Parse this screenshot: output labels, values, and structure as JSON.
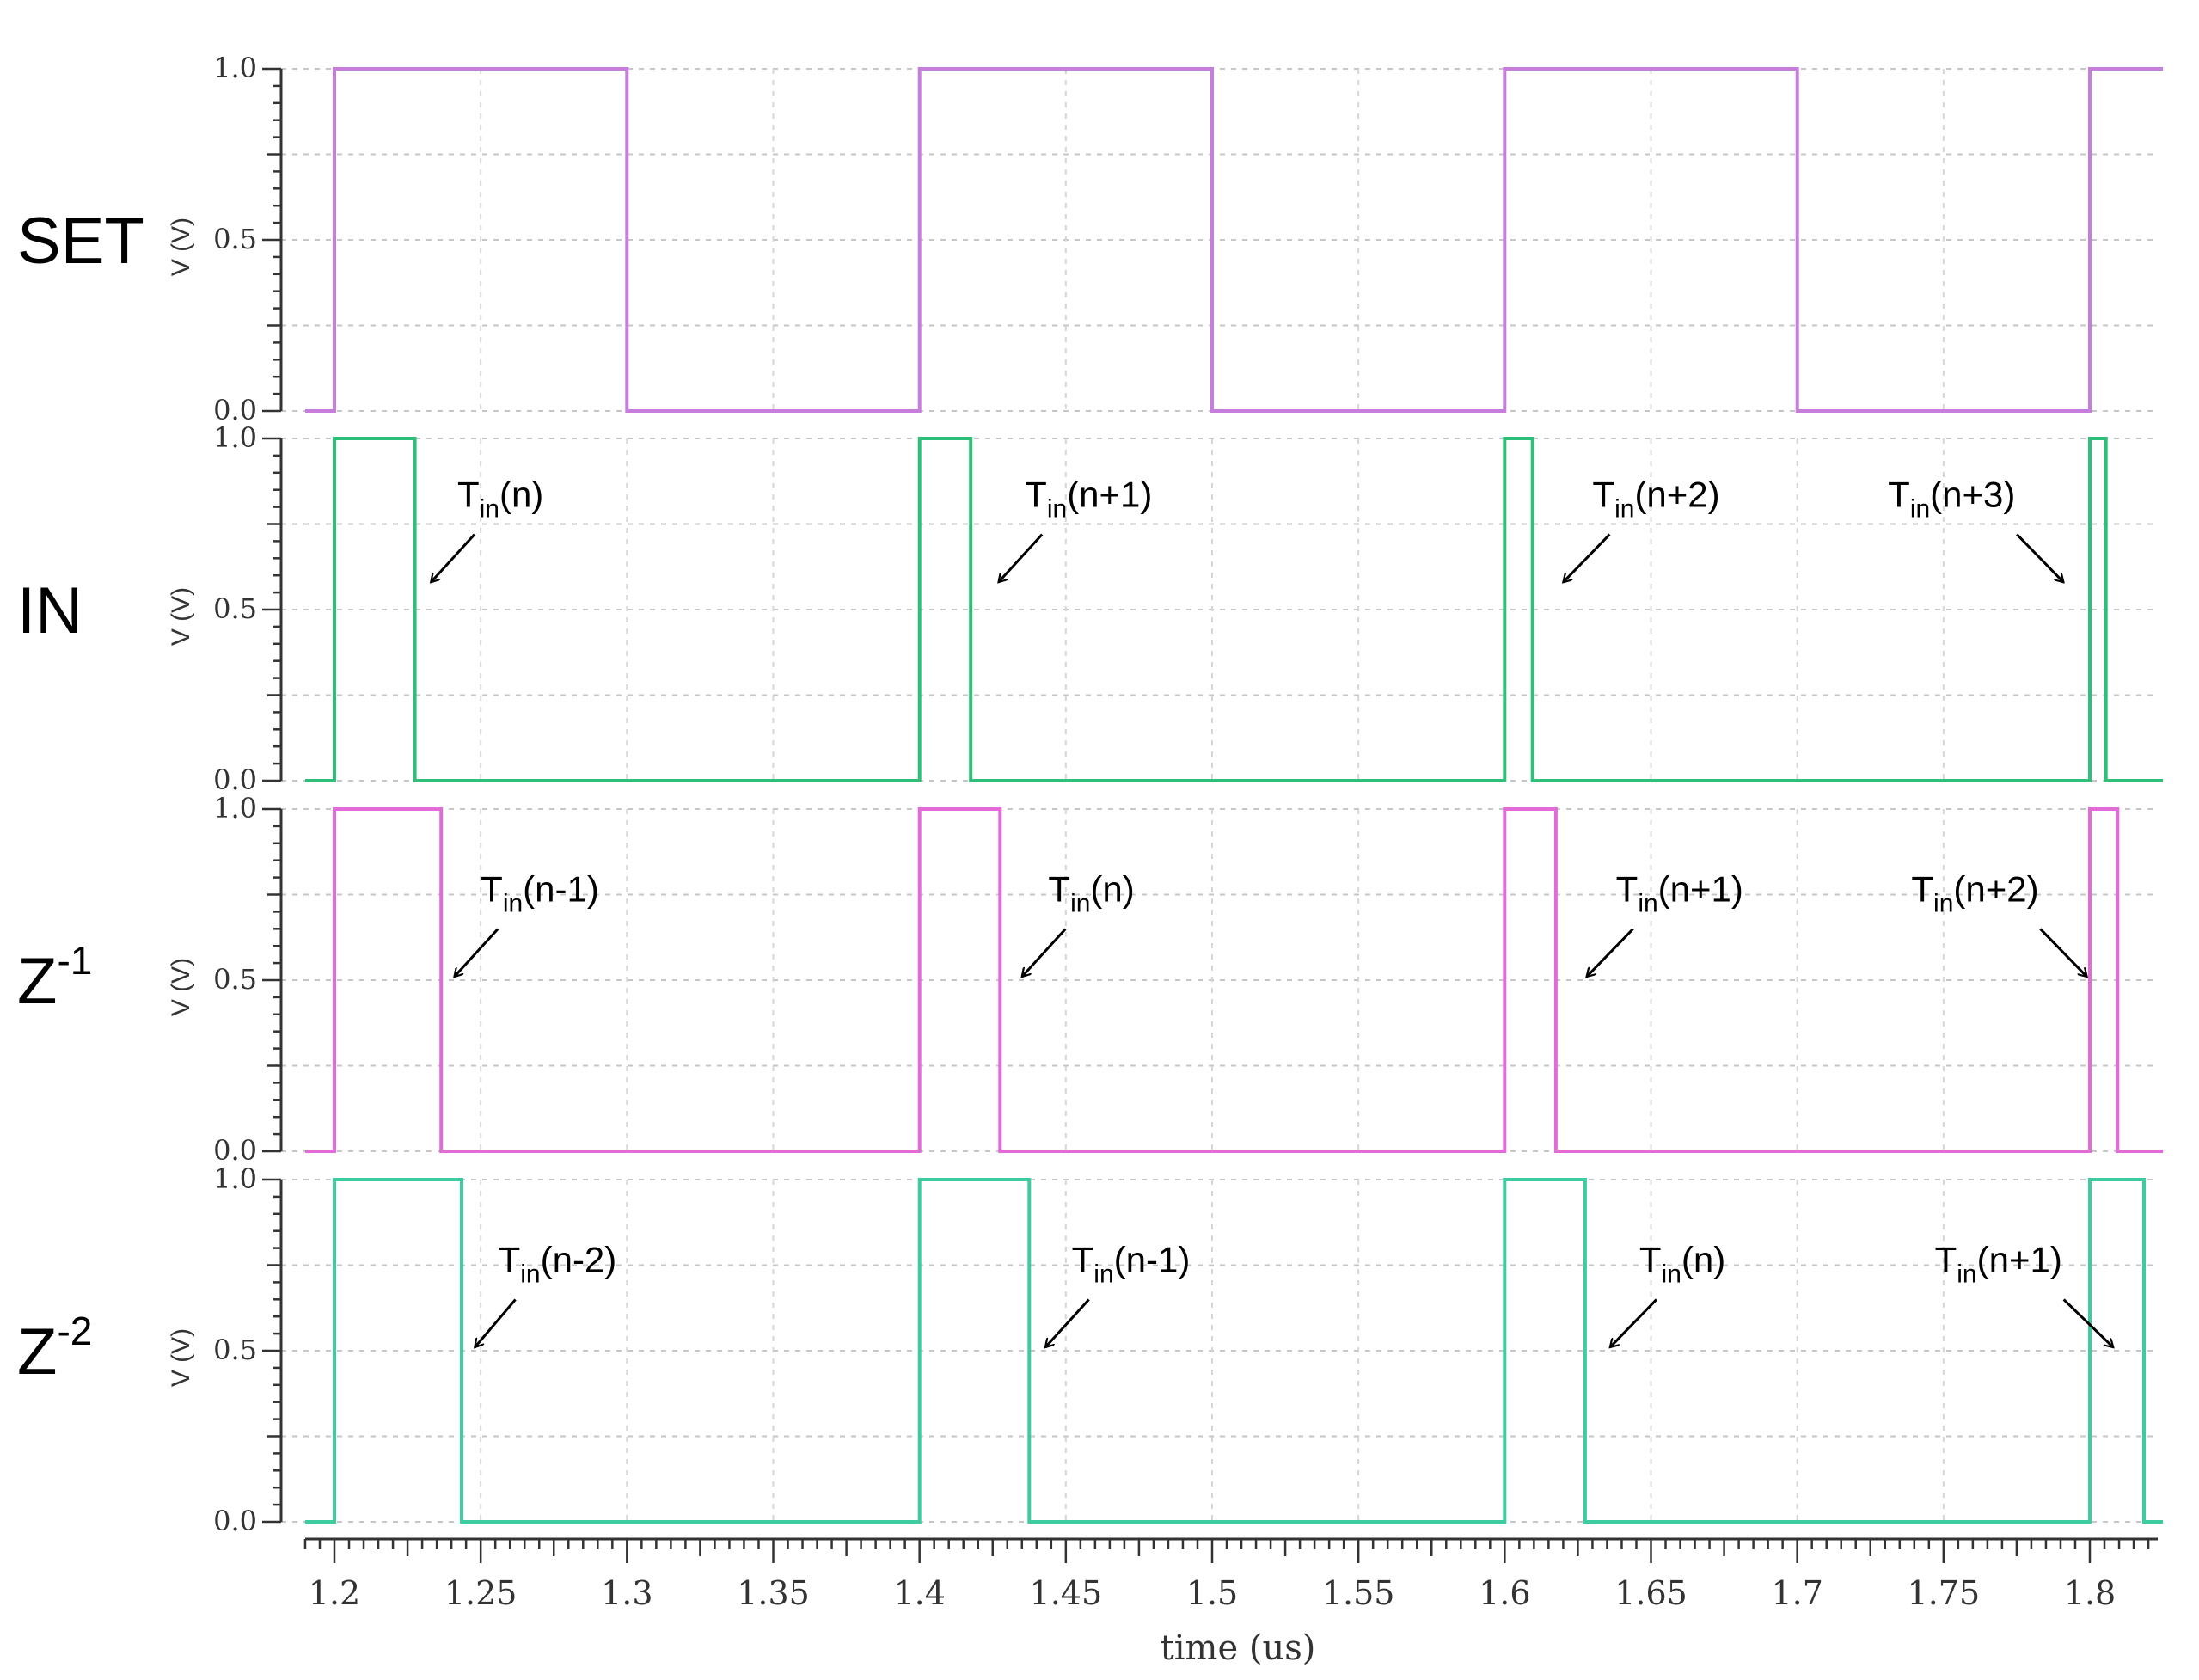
{
  "chart_data": {
    "type": "line",
    "xlabel": "time (us)",
    "xlim": [
      1.19,
      1.82
    ],
    "x_ticks": [
      "1.2",
      "1.25",
      "1.3",
      "1.35",
      "1.4",
      "1.45",
      "1.5",
      "1.55",
      "1.6",
      "1.65",
      "1.7",
      "1.75",
      "1.8"
    ],
    "y_ticks": [
      "0.0",
      "0.5",
      "1.0"
    ],
    "ylabel": "V (V)",
    "grid": true,
    "panels": [
      {
        "label": "SET",
        "sup": "",
        "color": "#c77ddb",
        "points": [
          [
            1.19,
            0
          ],
          [
            1.2,
            0
          ],
          [
            1.2,
            1
          ],
          [
            1.3,
            1
          ],
          [
            1.3,
            0
          ],
          [
            1.4,
            0
          ],
          [
            1.4,
            1
          ],
          [
            1.5,
            1
          ],
          [
            1.5,
            0
          ],
          [
            1.6,
            0
          ],
          [
            1.6,
            1
          ],
          [
            1.7,
            1
          ],
          [
            1.7,
            0
          ],
          [
            1.8,
            0
          ],
          [
            1.8,
            1
          ],
          [
            1.825,
            1
          ]
        ],
        "annotations": []
      },
      {
        "label": "IN",
        "sup": "",
        "color": "#2ebf7a",
        "points": [
          [
            1.19,
            0
          ],
          [
            1.2,
            0
          ],
          [
            1.2,
            1
          ],
          [
            1.2275,
            1
          ],
          [
            1.2275,
            0
          ],
          [
            1.4,
            0
          ],
          [
            1.4,
            1
          ],
          [
            1.4175,
            1
          ],
          [
            1.4175,
            0
          ],
          [
            1.6,
            0
          ],
          [
            1.6,
            1
          ],
          [
            1.6095,
            1
          ],
          [
            1.6095,
            0
          ],
          [
            1.8,
            0
          ],
          [
            1.8,
            1
          ],
          [
            1.8055,
            1
          ],
          [
            1.8055,
            0
          ],
          [
            1.825,
            0
          ]
        ],
        "annotations": [
          {
            "main": "T",
            "sub": "in",
            "arg": "(n)",
            "tx": 1.242,
            "ty": 0.8,
            "ax": 1.233,
            "ay": 0.58
          },
          {
            "main": "T",
            "sub": "in",
            "arg": "(n+1)",
            "tx": 1.436,
            "ty": 0.8,
            "ax": 1.427,
            "ay": 0.58
          },
          {
            "main": "T",
            "sub": "in",
            "arg": "(n+2)",
            "tx": 1.63,
            "ty": 0.8,
            "ax": 1.62,
            "ay": 0.58
          },
          {
            "main": "T",
            "sub": "in",
            "arg": "(n+3)",
            "tx": 1.731,
            "ty": 0.8,
            "ax": 1.791,
            "ay": 0.58
          }
        ]
      },
      {
        "label": "Z",
        "sup": "-1",
        "color": "#e26bd8",
        "points": [
          [
            1.19,
            0
          ],
          [
            1.2,
            0
          ],
          [
            1.2,
            1
          ],
          [
            1.2365,
            1
          ],
          [
            1.2365,
            0
          ],
          [
            1.4,
            0
          ],
          [
            1.4,
            1
          ],
          [
            1.4275,
            1
          ],
          [
            1.4275,
            0
          ],
          [
            1.6,
            0
          ],
          [
            1.6,
            1
          ],
          [
            1.6175,
            1
          ],
          [
            1.6175,
            0
          ],
          [
            1.8,
            0
          ],
          [
            1.8,
            1
          ],
          [
            1.8095,
            1
          ],
          [
            1.8095,
            0
          ],
          [
            1.825,
            0
          ]
        ],
        "annotations": [
          {
            "main": "T",
            "sub": "in",
            "arg": "(n-1)",
            "tx": 1.25,
            "ty": 0.73,
            "ax": 1.241,
            "ay": 0.51
          },
          {
            "main": "T",
            "sub": "in",
            "arg": "(n)",
            "tx": 1.444,
            "ty": 0.73,
            "ax": 1.435,
            "ay": 0.51
          },
          {
            "main": "T",
            "sub": "in",
            "arg": "(n+1)",
            "tx": 1.638,
            "ty": 0.73,
            "ax": 1.628,
            "ay": 0.51
          },
          {
            "main": "T",
            "sub": "in",
            "arg": "(n+2)",
            "tx": 1.739,
            "ty": 0.73,
            "ax": 1.799,
            "ay": 0.51
          }
        ]
      },
      {
        "label": "Z",
        "sup": "-2",
        "color": "#3ccca0",
        "points": [
          [
            1.19,
            0
          ],
          [
            1.2,
            0
          ],
          [
            1.2,
            1
          ],
          [
            1.2435,
            1
          ],
          [
            1.2435,
            0
          ],
          [
            1.4,
            0
          ],
          [
            1.4,
            1
          ],
          [
            1.4375,
            1
          ],
          [
            1.4375,
            0
          ],
          [
            1.6,
            0
          ],
          [
            1.6,
            1
          ],
          [
            1.6275,
            1
          ],
          [
            1.6275,
            0
          ],
          [
            1.8,
            0
          ],
          [
            1.8,
            1
          ],
          [
            1.8185,
            1
          ],
          [
            1.8185,
            0
          ],
          [
            1.825,
            0
          ]
        ],
        "annotations": [
          {
            "main": "T",
            "sub": "in",
            "arg": "(n-2)",
            "tx": 1.256,
            "ty": 0.73,
            "ax": 1.248,
            "ay": 0.51
          },
          {
            "main": "T",
            "sub": "in",
            "arg": "(n-1)",
            "tx": 1.452,
            "ty": 0.73,
            "ax": 1.443,
            "ay": 0.51
          },
          {
            "main": "T",
            "sub": "in",
            "arg": "(n)",
            "tx": 1.646,
            "ty": 0.73,
            "ax": 1.636,
            "ay": 0.51
          },
          {
            "main": "T",
            "sub": "in",
            "arg": "(n+1)",
            "tx": 1.747,
            "ty": 0.73,
            "ax": 1.808,
            "ay": 0.51
          }
        ]
      }
    ]
  }
}
